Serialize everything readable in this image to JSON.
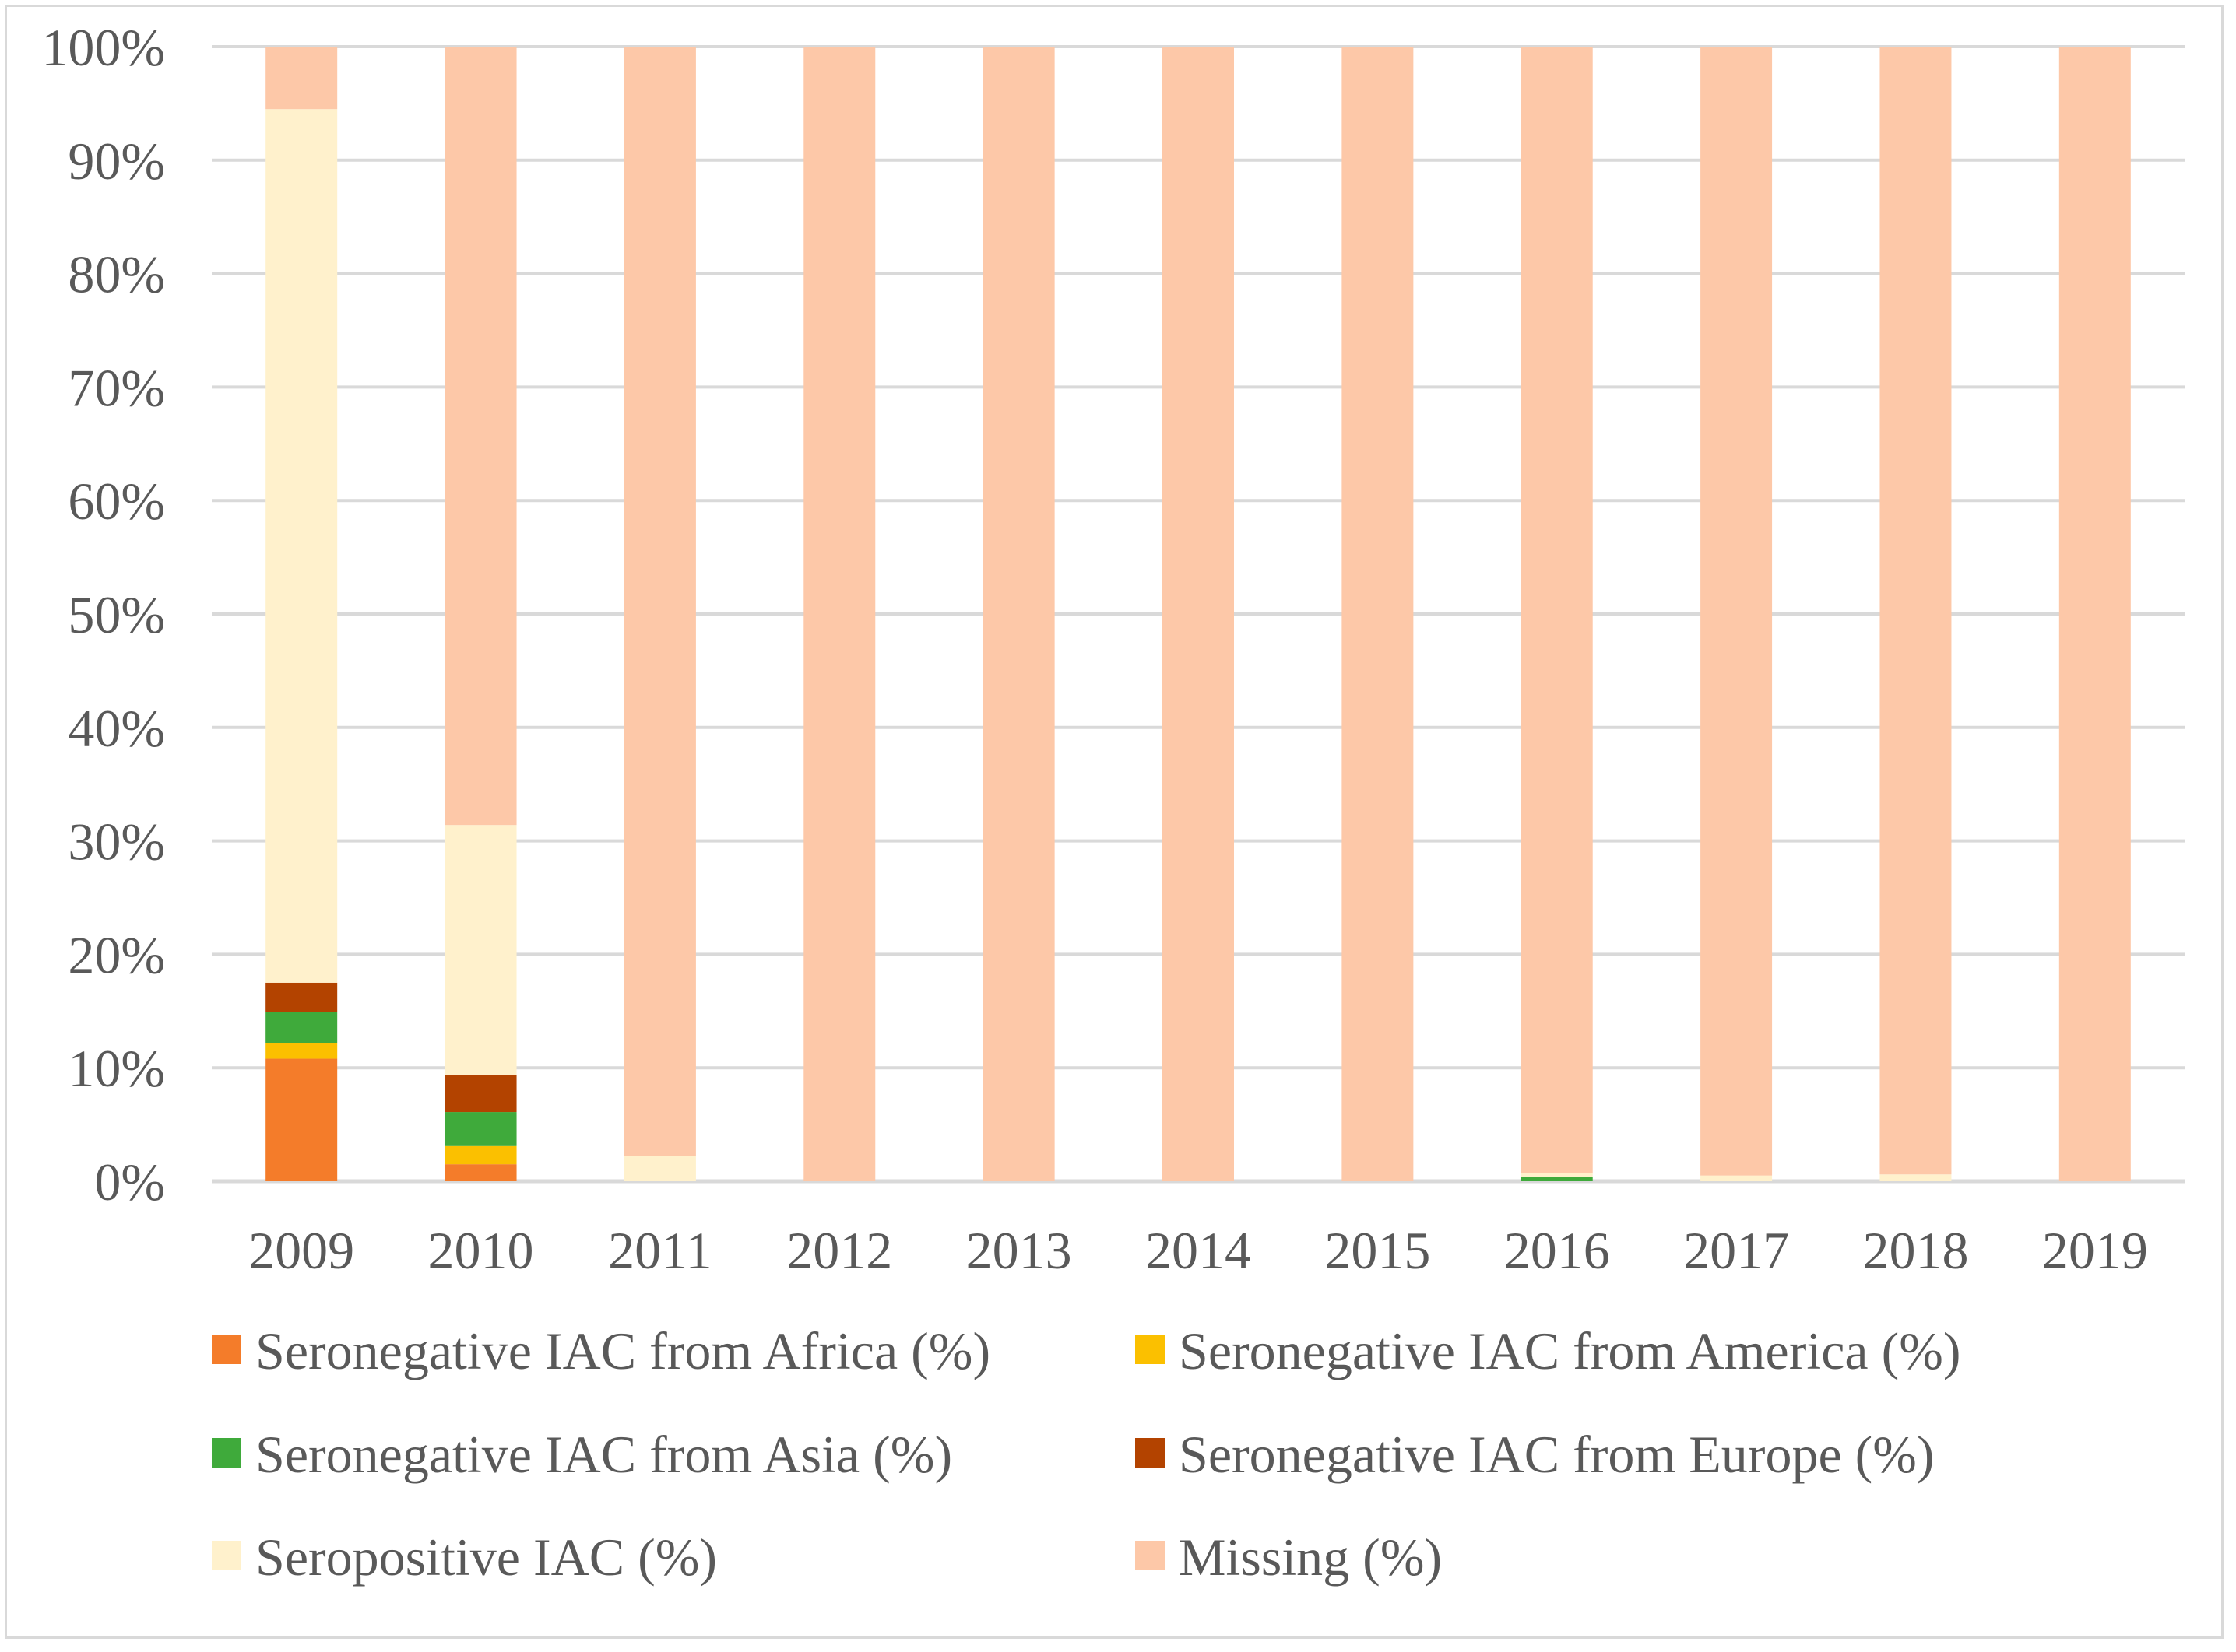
{
  "chart_data": {
    "type": "bar",
    "stacked": true,
    "title": "",
    "xlabel": "",
    "ylabel": "",
    "ylim": [
      0,
      100
    ],
    "y_ticks": [
      "0%",
      "10%",
      "20%",
      "30%",
      "40%",
      "50%",
      "60%",
      "70%",
      "80%",
      "90%",
      "100%"
    ],
    "grid": true,
    "legend_position": "bottom",
    "categories": [
      "2009",
      "2010",
      "2011",
      "2012",
      "2013",
      "2014",
      "2015",
      "2016",
      "2017",
      "2018",
      "2019"
    ],
    "series": [
      {
        "name": "Seronegative IAC from Africa (%)",
        "color": "#f47c2a",
        "values": [
          10.8,
          1.5,
          0,
          0,
          0,
          0,
          0,
          0,
          0,
          0,
          0
        ]
      },
      {
        "name": "Seronegative IAC from America (%)",
        "color": "#fbc000",
        "values": [
          1.4,
          1.6,
          0,
          0,
          0,
          0,
          0,
          0,
          0,
          0,
          0
        ]
      },
      {
        "name": "Seronegative IAC from Asia (%)",
        "color": "#3faa3b",
        "values": [
          2.7,
          3.0,
          0,
          0,
          0,
          0,
          0,
          0.4,
          0,
          0,
          0
        ]
      },
      {
        "name": "Seronegative IAC from Europe (%)",
        "color": "#b34300",
        "values": [
          2.6,
          3.3,
          0,
          0,
          0,
          0,
          0,
          0,
          0,
          0,
          0
        ]
      },
      {
        "name": "Seropositive IAC (%)",
        "color": "#fff1cc",
        "values": [
          77.0,
          22.0,
          2.2,
          0,
          0,
          0,
          0,
          0.3,
          0.5,
          0.6,
          0
        ]
      },
      {
        "name": "Missing (%)",
        "color": "#fdc8a8",
        "values": [
          5.5,
          68.6,
          97.8,
          100,
          100,
          100,
          100,
          99.3,
          99.5,
          99.4,
          100
        ]
      }
    ]
  }
}
